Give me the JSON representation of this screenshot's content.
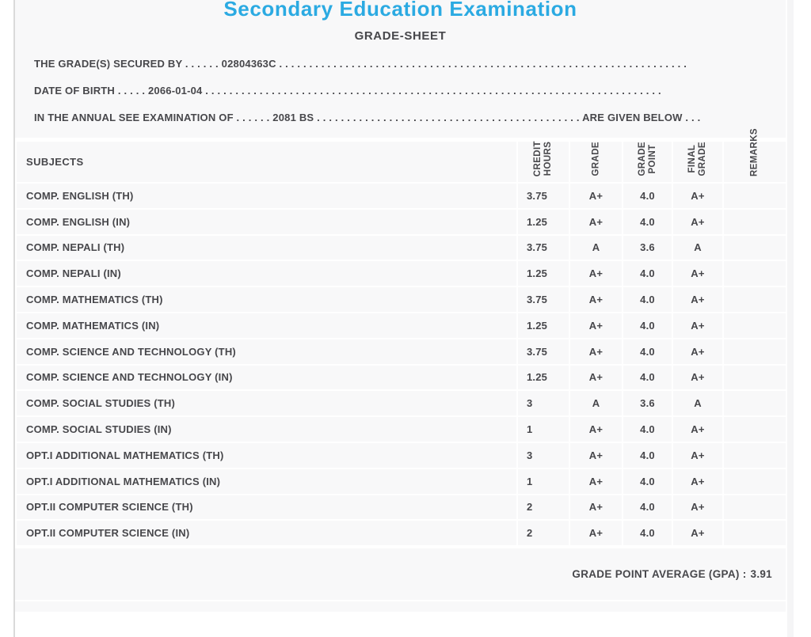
{
  "header": {
    "title": "Secondary Education Examination",
    "subtitle": "GRADE-SHEET",
    "line_grades": {
      "label": "THE GRADE(S) SECURED BY",
      "dots_before": ". . . . . .",
      "value": "02804363C",
      "dots_after": ". . . . . . . . . . . . . . . . . . . . . . . . . . . . . . . . . . . . . . . . . . . . . . . . . . . . . . . . . . . . . . . . . . . ."
    },
    "line_dob": {
      "label": "DATE OF BIRTH",
      "dots_before": ". . . . .",
      "value": "2066-01-04",
      "dots_after": ". . . . . . . . . . . . . . . . . . . . . . . . . . . . . . . . . . . . . . . . . . . . . . . . . . . . . . . . . . . . . . . . . . . . . . . . . . . ."
    },
    "line_exam": {
      "label": "IN THE ANNUAL SEE EXAMINATION OF",
      "dots_before": ". . . . . .",
      "value": "2081 BS",
      "dots_mid": ". . . . . . . . . . . . . . . . . . . . . . . . . . . . . . . . . . . . . . . . . . . .",
      "suffix": "ARE GIVEN BELOW",
      "dots_after": ". . ."
    }
  },
  "table": {
    "columns": [
      "SUBJECTS",
      "CREDIT\nHOURS",
      "GRADE",
      "GRADE\nPOINT",
      "FINAL\nGRADE",
      "REMARKS"
    ],
    "rows": [
      {
        "subject": "COMP. ENGLISH (TH)",
        "credit_hours": "3.75",
        "grade": "A+",
        "grade_point": "4.0",
        "final_grade": "A+",
        "remarks": ""
      },
      {
        "subject": "COMP. ENGLISH (IN)",
        "credit_hours": "1.25",
        "grade": "A+",
        "grade_point": "4.0",
        "final_grade": "A+",
        "remarks": ""
      },
      {
        "subject": "COMP. NEPALI (TH)",
        "credit_hours": "3.75",
        "grade": "A",
        "grade_point": "3.6",
        "final_grade": "A",
        "remarks": ""
      },
      {
        "subject": "COMP. NEPALI (IN)",
        "credit_hours": "1.25",
        "grade": "A+",
        "grade_point": "4.0",
        "final_grade": "A+",
        "remarks": ""
      },
      {
        "subject": "COMP. MATHEMATICS (TH)",
        "credit_hours": "3.75",
        "grade": "A+",
        "grade_point": "4.0",
        "final_grade": "A+",
        "remarks": ""
      },
      {
        "subject": "COMP. MATHEMATICS (IN)",
        "credit_hours": "1.25",
        "grade": "A+",
        "grade_point": "4.0",
        "final_grade": "A+",
        "remarks": ""
      },
      {
        "subject": "COMP. SCIENCE AND TECHNOLOGY (TH)",
        "credit_hours": "3.75",
        "grade": "A+",
        "grade_point": "4.0",
        "final_grade": "A+",
        "remarks": ""
      },
      {
        "subject": "COMP. SCIENCE AND TECHNOLOGY (IN)",
        "credit_hours": "1.25",
        "grade": "A+",
        "grade_point": "4.0",
        "final_grade": "A+",
        "remarks": ""
      },
      {
        "subject": "COMP. SOCIAL STUDIES (TH)",
        "credit_hours": "3",
        "grade": "A",
        "grade_point": "3.6",
        "final_grade": "A",
        "remarks": ""
      },
      {
        "subject": "COMP. SOCIAL STUDIES (IN)",
        "credit_hours": "1",
        "grade": "A+",
        "grade_point": "4.0",
        "final_grade": "A+",
        "remarks": ""
      },
      {
        "subject": "OPT.I ADDITIONAL MATHEMATICS (TH)",
        "credit_hours": "3",
        "grade": "A+",
        "grade_point": "4.0",
        "final_grade": "A+",
        "remarks": ""
      },
      {
        "subject": "OPT.I ADDITIONAL MATHEMATICS (IN)",
        "credit_hours": "1",
        "grade": "A+",
        "grade_point": "4.0",
        "final_grade": "A+",
        "remarks": ""
      },
      {
        "subject": "OPT.II COMPUTER SCIENCE (TH)",
        "credit_hours": "2",
        "grade": "A+",
        "grade_point": "4.0",
        "final_grade": "A+",
        "remarks": ""
      },
      {
        "subject": "OPT.II COMPUTER SCIENCE (IN)",
        "credit_hours": "2",
        "grade": "A+",
        "grade_point": "4.0",
        "final_grade": "A+",
        "remarks": ""
      }
    ]
  },
  "summary": {
    "gpa_label": "GRADE POINT AVERAGE (GPA) :",
    "gpa_value": "3.91"
  },
  "colors": {
    "title_blue": "#2baae2",
    "text": "#47474b",
    "row_bg": "#f8f8f9"
  }
}
